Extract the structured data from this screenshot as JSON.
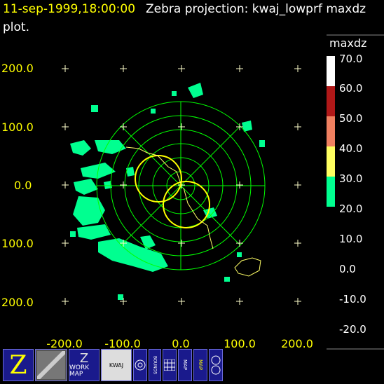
{
  "header": {
    "timestamp": "11-sep-1999,18:00:00",
    "title": "Zebra projection: kwaj_lowprf maxdz",
    "title_cont": "plot."
  },
  "plot": {
    "y_tick_labels": [
      "200.0",
      "100.0",
      "0.0",
      "100.0",
      "200.0"
    ],
    "x_tick_labels": [
      "-200.0",
      "-100.0",
      "0.0",
      "100.0",
      "200.0"
    ],
    "background_color": "#000000",
    "ring_color": "#00ff00",
    "overlay_color": "#ffff00"
  },
  "colorbar": {
    "field": "maxdz",
    "labels": [
      "70.0",
      "60.0",
      "50.0",
      "40.0",
      "30.0",
      "20.0",
      "10.0",
      "0.0",
      "-10.0",
      "-20.0"
    ],
    "colors": [
      "#ffffff",
      "#b01818",
      "#f08060",
      "#ffffff",
      "#ffff60",
      "#00ff90"
    ]
  },
  "iconbar": {
    "work_map_label": "WORK MAP",
    "kwaj_label": "KWAJ",
    "bounds_label": "BOUNDS",
    "map_label": "MAP"
  }
}
